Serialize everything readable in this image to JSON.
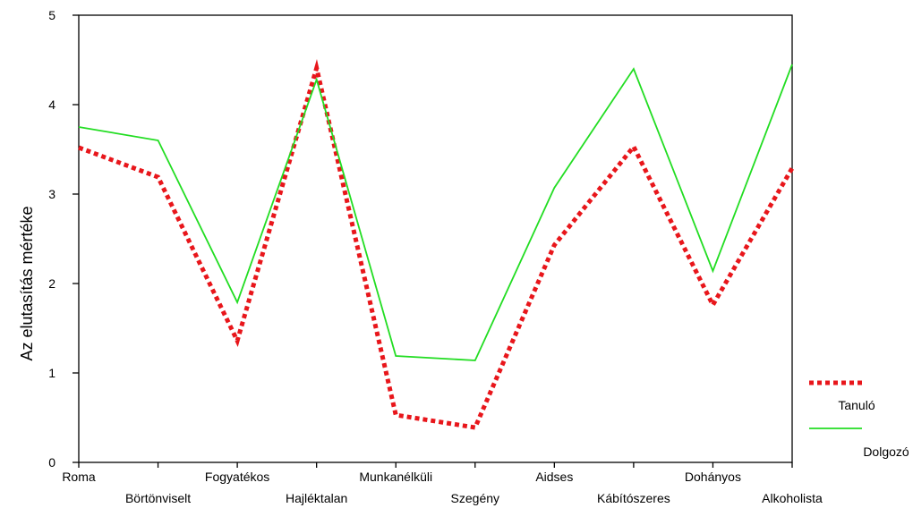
{
  "chart_data": {
    "type": "line",
    "categories": [
      "Roma",
      "Börtönviselt",
      "Fogyatékos",
      "Hajléktalan",
      "Munkanélküli",
      "Szegény",
      "Aidses",
      "Kábítószeres",
      "Dohányos",
      "Alkoholista"
    ],
    "series": [
      {
        "name": "Tanuló",
        "color": "#e8161b",
        "style": "dotted",
        "values": [
          3.52,
          3.19,
          1.36,
          4.41,
          0.53,
          0.39,
          2.43,
          3.53,
          1.76,
          3.29
        ]
      },
      {
        "name": "Dolgozó",
        "color": "#22dd22",
        "style": "solid",
        "values": [
          3.75,
          3.6,
          1.79,
          4.28,
          1.19,
          1.14,
          3.07,
          4.4,
          2.14,
          4.45
        ]
      }
    ],
    "ylabel": "Az elutasítás mértéke",
    "ylim": [
      0,
      5
    ],
    "yticks": [
      0,
      1,
      2,
      3,
      4,
      5
    ],
    "grid": false,
    "legend_position": "right"
  }
}
